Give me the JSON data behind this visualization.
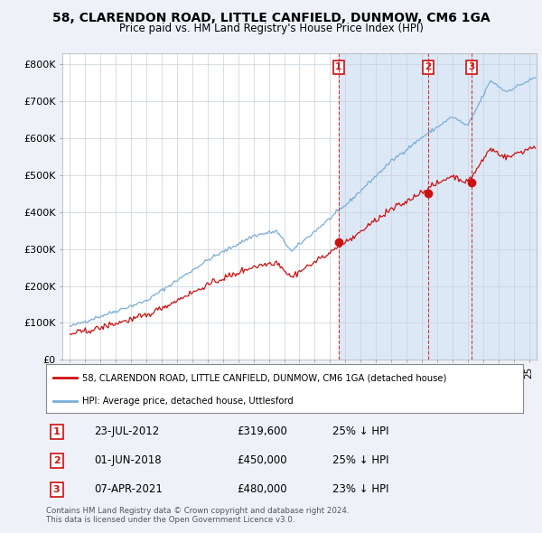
{
  "title": "58, CLARENDON ROAD, LITTLE CANFIELD, DUNMOW, CM6 1GA",
  "subtitle": "Price paid vs. HM Land Registry's House Price Index (HPI)",
  "hpi_color": "#7aaed6",
  "price_color": "#cc1111",
  "background_color": "#eef2f8",
  "plot_bg_color": "#ffffff",
  "shaded_region_color": "#dce8f5",
  "ylim": [
    0,
    830000
  ],
  "yticks": [
    0,
    100000,
    200000,
    300000,
    400000,
    500000,
    600000,
    700000,
    800000
  ],
  "ytick_labels": [
    "£0",
    "£100K",
    "£200K",
    "£300K",
    "£400K",
    "£500K",
    "£600K",
    "£700K",
    "£800K"
  ],
  "xstart": 1995.0,
  "xend": 2025.5,
  "legend_entry1": "58, CLARENDON ROAD, LITTLE CANFIELD, DUNMOW, CM6 1GA (detached house)",
  "legend_entry2": "HPI: Average price, detached house, Uttlesford",
  "sale_points": [
    {
      "date_num": 2012.55,
      "price": 319600,
      "label": "1"
    },
    {
      "date_num": 2018.42,
      "price": 450000,
      "label": "2"
    },
    {
      "date_num": 2021.27,
      "price": 480000,
      "label": "3"
    }
  ],
  "table_rows": [
    {
      "num": "1",
      "date": "23-JUL-2012",
      "price": "£319,600",
      "hpi": "25% ↓ HPI"
    },
    {
      "num": "2",
      "date": "01-JUN-2018",
      "price": "£450,000",
      "hpi": "25% ↓ HPI"
    },
    {
      "num": "3",
      "date": "07-APR-2021",
      "price": "£480,000",
      "hpi": "23% ↓ HPI"
    }
  ],
  "footer1": "Contains HM Land Registry data © Crown copyright and database right 2024.",
  "footer2": "This data is licensed under the Open Government Licence v3.0."
}
